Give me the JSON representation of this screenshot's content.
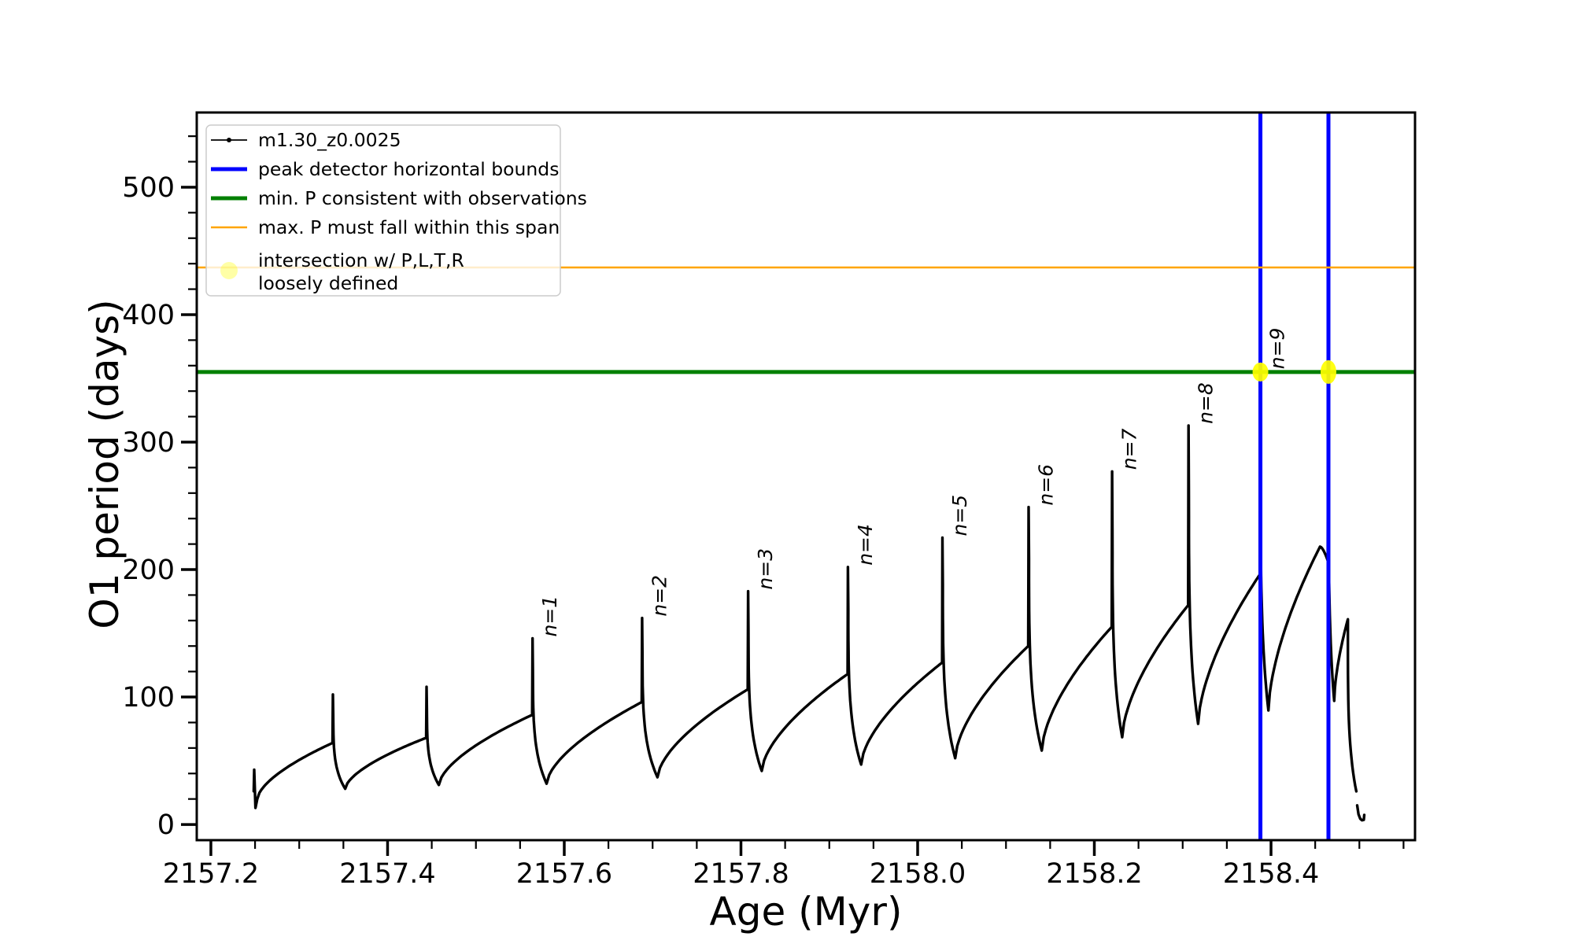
{
  "figure": {
    "background": "#ffffff"
  },
  "colors": {
    "curve": "#000000",
    "vline_blue": "#0000ff",
    "hline_green": "#008000",
    "hline_orange": "#ffa500",
    "intersection_yellow": "#ffff00",
    "legend_border": "#cccccc"
  },
  "chart_data": {
    "type": "line",
    "title": "",
    "xlabel": "Age (Myr)",
    "ylabel": "O1 period (days)",
    "xlim": [
      2157.184,
      2158.563
    ],
    "ylim": [
      -12.3,
      558.6
    ],
    "x_major_ticks": [
      2157.2,
      2157.4,
      2157.6,
      2157.8,
      2158.0,
      2158.2,
      2158.4
    ],
    "x_tick_labels": [
      "2157.2",
      "2157.4",
      "2157.6",
      "2157.8",
      "2158.0",
      "2158.2",
      "2158.4"
    ],
    "x_minor_step": 0.05,
    "y_major_ticks": [
      0,
      100,
      200,
      300,
      400,
      500
    ],
    "y_tick_labels": [
      "0",
      "100",
      "200",
      "300",
      "400",
      "500"
    ],
    "y_minor_step": 20,
    "grid": false,
    "legend_position": "upper left",
    "series_label": "m1.30_z0.0025",
    "hlines": [
      {
        "label": "min. P consistent with observations",
        "value": 355,
        "color": "#008000",
        "lw": 5
      },
      {
        "label": "max. P must fall within this span",
        "value": 437,
        "color": "#ffa500",
        "lw": 2.5
      }
    ],
    "vlines": {
      "label": "peak detector horizontal bounds",
      "values": [
        2158.388,
        2158.465
      ],
      "color": "#0000ff",
      "lw": 5
    },
    "intersections": {
      "label": "intersection w/ P,L,T,R\nloosely defined",
      "points": [
        [
          2158.388,
          355
        ],
        [
          2158.465,
          355
        ]
      ],
      "color": "#ffff00"
    },
    "start_blip": [
      [
        2157.2485,
        26
      ],
      [
        2157.249,
        43
      ],
      [
        2157.2505,
        13
      ],
      [
        2157.2525,
        20
      ]
    ],
    "cycles": [
      {
        "t_min": 2157.2525,
        "p_min": 20,
        "t_spike": 2157.3385,
        "p_shoulder": 64,
        "p_peak": 102,
        "t_fall_end": 2157.352,
        "p_fall_end": 28
      },
      {
        "t_min": 2157.352,
        "p_min": 28,
        "t_spike": 2157.4445,
        "p_shoulder": 68,
        "p_peak": 108,
        "t_fall_end": 2157.458,
        "p_fall_end": 31
      },
      {
        "t_min": 2157.458,
        "p_min": 31,
        "t_spike": 2157.5645,
        "p_shoulder": 86,
        "p_peak": 146,
        "t_fall_end": 2157.58,
        "p_fall_end": 32,
        "label": "n=1"
      },
      {
        "t_min": 2157.58,
        "p_min": 32,
        "t_spike": 2157.6885,
        "p_shoulder": 96,
        "p_peak": 162,
        "t_fall_end": 2157.7055,
        "p_fall_end": 37,
        "label": "n=2"
      },
      {
        "t_min": 2157.7055,
        "p_min": 37,
        "t_spike": 2157.8085,
        "p_shoulder": 106,
        "p_peak": 183,
        "t_fall_end": 2157.8235,
        "p_fall_end": 42,
        "label": "n=3"
      },
      {
        "t_min": 2157.8235,
        "p_min": 42,
        "t_spike": 2157.9215,
        "p_shoulder": 118,
        "p_peak": 202,
        "t_fall_end": 2157.936,
        "p_fall_end": 47,
        "label": "n=4"
      },
      {
        "t_min": 2157.936,
        "p_min": 47,
        "t_spike": 2158.0285,
        "p_shoulder": 127,
        "p_peak": 225,
        "t_fall_end": 2158.0425,
        "p_fall_end": 52,
        "label": "n=5"
      },
      {
        "t_min": 2158.0425,
        "p_min": 52,
        "t_spike": 2158.126,
        "p_shoulder": 140,
        "p_peak": 249,
        "t_fall_end": 2158.1405,
        "p_fall_end": 58,
        "label": "n=6"
      },
      {
        "t_min": 2158.1405,
        "p_min": 58,
        "t_spike": 2158.2205,
        "p_shoulder": 155,
        "p_peak": 277,
        "t_fall_end": 2158.2315,
        "p_fall_end": 68.5,
        "label": "n=7"
      },
      {
        "t_min": 2158.2315,
        "p_min": 68.5,
        "t_spike": 2158.307,
        "p_shoulder": 172,
        "p_peak": 313,
        "t_fall_end": 2158.3175,
        "p_fall_end": 79,
        "label": "n=8"
      },
      {
        "t_min": 2158.3175,
        "p_min": 79,
        "t_spike": 2158.388,
        "p_shoulder": 196,
        "p_peak": 356,
        "t_fall_end": 2158.397,
        "p_fall_end": 89.5,
        "label": "n=9"
      },
      {
        "t_min": 2158.397,
        "p_min": 89.5,
        "t_spike": 2158.465,
        "p_shoulder": 207,
        "p_peak": 356,
        "t_fall_end": 2158.4715,
        "p_fall_end": 97,
        "apex_t": 2158.4555,
        "apex_p": 218
      }
    ],
    "tail": {
      "rise_to": [
        2158.487,
        161
      ],
      "fall_to": [
        2158.4965,
        26
      ],
      "curl": [
        [
          2158.4975,
          15
        ],
        [
          2158.499,
          8
        ],
        [
          2158.501,
          4.5
        ],
        [
          2158.503,
          3.3
        ],
        [
          2158.505,
          3.6
        ],
        [
          2158.5055,
          7.5
        ]
      ]
    }
  },
  "legend": {
    "entries": [
      {
        "kind": "line-dot",
        "color": "#000000",
        "lw": 1.8,
        "label": "m1.30_z0.0025"
      },
      {
        "kind": "line",
        "color": "#0000ff",
        "lw": 5,
        "label": "peak detector horizontal bounds"
      },
      {
        "kind": "line",
        "color": "#008000",
        "lw": 5,
        "label": "min. P consistent with observations"
      },
      {
        "kind": "line",
        "color": "#ffa500",
        "lw": 2.5,
        "label": "max. P must fall within this span"
      },
      {
        "kind": "marker",
        "color": "rgba(255,255,0,0.35)",
        "label": "intersection w/ P,L,T,R\nloosely defined"
      }
    ]
  }
}
